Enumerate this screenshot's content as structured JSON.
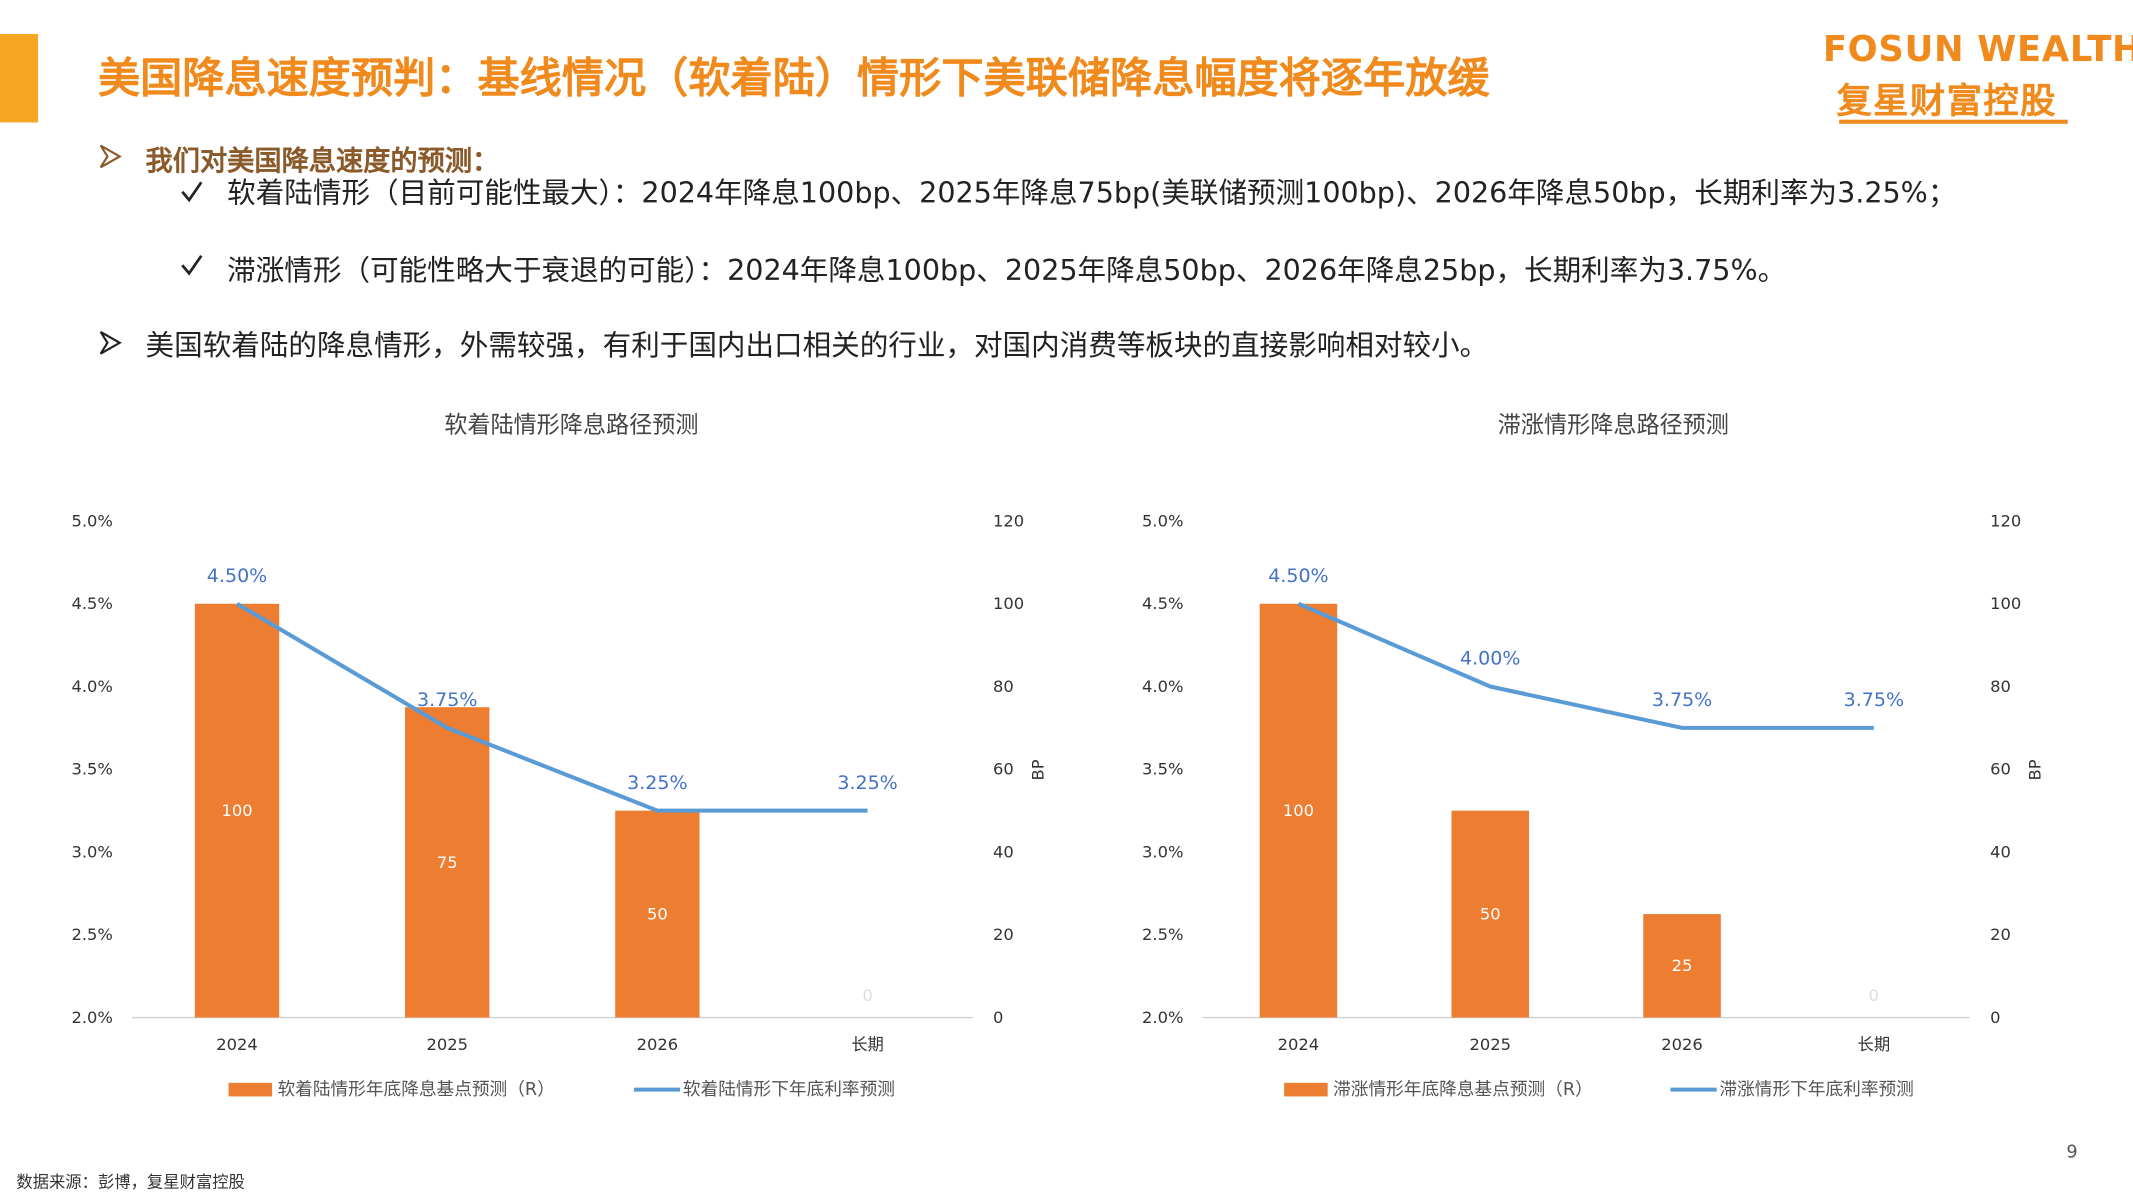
{
  "header": {
    "title": "美国降息速度预判：基线情况（软着陆）情形下美联储降息幅度将逐年放缓",
    "logo_en": "FOSUN WEALTH",
    "logo_cn": "复星财富控股"
  },
  "bullets": {
    "lead": "我们对美国降息速度的预测：",
    "sub": [
      "软着陆情形（目前可能性最大）：2024年降息100bp、2025年降息75bp(美联储预测100bp)、2026年降息50bp，长期利率为3.25%；",
      "滞涨情形（可能性略大于衰退的可能）：2024年降息100bp、2025年降息50bp、2026年降息25bp，长期利率为3.75%。"
    ],
    "second": "美国软着陆的降息情形，外需较强，有利于国内出口相关的行业，对国内消费等板块的直接影响相对较小。"
  },
  "footer": {
    "source": "数据来源：彭博，复星财富控股",
    "page": "9"
  },
  "chart_data": [
    {
      "type": "bar_line",
      "title": "软着陆情形降息路径预测",
      "categories": [
        "2024",
        "2025",
        "2026",
        "长期"
      ],
      "series": [
        {
          "name": "软着陆情形年底降息基点预测（R）",
          "type": "bar",
          "axis": "y2",
          "color": "#ed7d31",
          "values": [
            100,
            75,
            50,
            0
          ]
        },
        {
          "name": "软着陆情形下年底利率预测",
          "type": "line",
          "axis": "y",
          "color": "#5b9bd5",
          "values": [
            4.5,
            3.75,
            3.25,
            3.25
          ],
          "value_labels": [
            "4.50%",
            "3.75%",
            "3.25%",
            "3.25%"
          ]
        }
      ],
      "ylim": [
        2.0,
        5.0
      ],
      "yticks": [
        {
          "value": 2.0,
          "label": "2.0%"
        },
        {
          "value": 2.5,
          "label": "2.5%"
        },
        {
          "value": 3.0,
          "label": "3.0%"
        },
        {
          "value": 3.5,
          "label": "3.5%"
        },
        {
          "value": 4.0,
          "label": "4.0%"
        },
        {
          "value": 4.5,
          "label": "4.5%"
        },
        {
          "value": 5.0,
          "label": "5.0%"
        }
      ],
      "y2lim": [
        0,
        120
      ],
      "y2ticks": [
        0,
        20,
        40,
        60,
        80,
        100,
        120
      ],
      "y2label": "BP",
      "legend": "bottom"
    },
    {
      "type": "bar_line",
      "title": "滞涨情形降息路径预测",
      "categories": [
        "2024",
        "2025",
        "2026",
        "长期"
      ],
      "series": [
        {
          "name": "滞涨情形年底降息基点预测（R）",
          "type": "bar",
          "axis": "y2",
          "color": "#ed7d31",
          "values": [
            100,
            50,
            25,
            0
          ]
        },
        {
          "name": "滞涨情形下年底利率预测",
          "type": "line",
          "axis": "y",
          "color": "#5b9bd5",
          "values": [
            4.5,
            4.0,
            3.75,
            3.75
          ],
          "value_labels": [
            "4.50%",
            "4.00%",
            "3.75%",
            "3.75%"
          ]
        }
      ],
      "ylim": [
        2.0,
        5.0
      ],
      "yticks": [
        {
          "value": 2.0,
          "label": "2.0%"
        },
        {
          "value": 2.5,
          "label": "2.5%"
        },
        {
          "value": 3.0,
          "label": "3.0%"
        },
        {
          "value": 3.5,
          "label": "3.5%"
        },
        {
          "value": 4.0,
          "label": "4.0%"
        },
        {
          "value": 4.5,
          "label": "4.5%"
        },
        {
          "value": 5.0,
          "label": "5.0%"
        }
      ],
      "y2lim": [
        0,
        120
      ],
      "y2ticks": [
        0,
        20,
        40,
        60,
        80,
        100,
        120
      ],
      "y2label": "BP",
      "legend": "bottom"
    }
  ]
}
